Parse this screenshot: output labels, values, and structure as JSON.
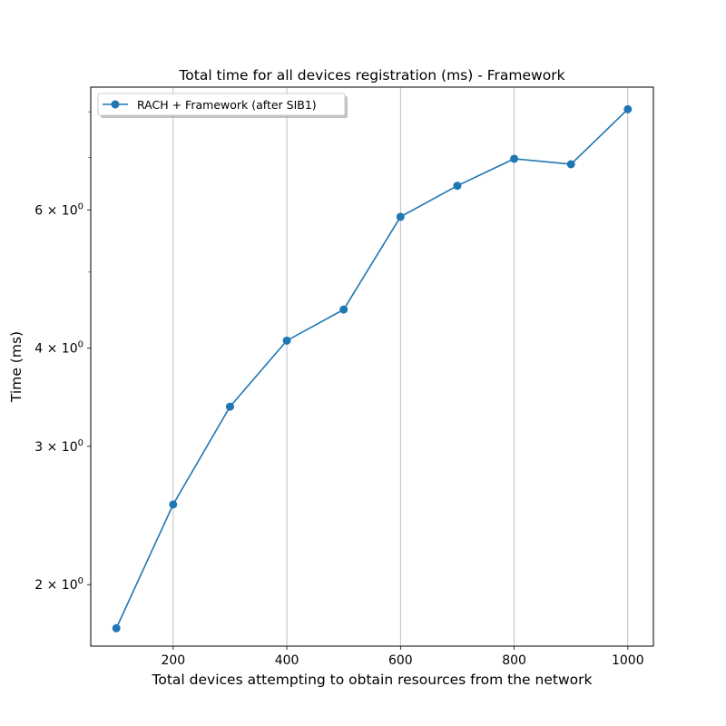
{
  "chart_data": {
    "type": "line",
    "title": "Total time for all devices registration (ms) - Framework",
    "xlabel": "Total devices attempting to obtain resources from the network",
    "ylabel": "Time (ms)",
    "yscale": "log",
    "xlim": [
      55,
      1045
    ],
    "ylim": [
      1.67,
      8.6
    ],
    "x_ticks": [
      200,
      400,
      600,
      800,
      1000
    ],
    "x_tick_labels": [
      "200",
      "400",
      "600",
      "800",
      "1000"
    ],
    "y_major_ticks": [
      2,
      3,
      4,
      6
    ],
    "y_major_tick_labels": [
      "2",
      "3",
      "4",
      "6"
    ],
    "y_minor_ticks": [
      5,
      7,
      8
    ],
    "grid": "x-major",
    "legend_position": "top-left",
    "series": [
      {
        "name": "RACH + Framework (after SIB1)",
        "color": "#1f77b4",
        "marker": "circle",
        "x": [
          100,
          200,
          300,
          400,
          500,
          600,
          700,
          800,
          900,
          1000
        ],
        "y": [
          1.76,
          2.53,
          3.37,
          4.09,
          4.48,
          5.88,
          6.44,
          6.97,
          6.86,
          8.06
        ]
      }
    ]
  }
}
